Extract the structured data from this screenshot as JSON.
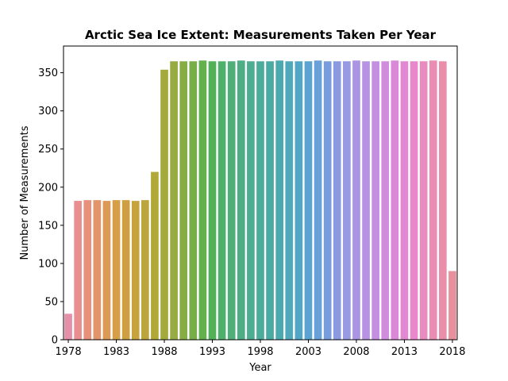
{
  "chart_data": {
    "type": "bar",
    "title": "Arctic Sea Ice Extent: Measurements Taken Per Year",
    "xlabel": "Year",
    "ylabel": "Number of Measurements",
    "ylim": [
      0,
      385
    ],
    "yticks": [
      0,
      50,
      100,
      150,
      200,
      250,
      300,
      350
    ],
    "xtick_labels": [
      "1978",
      "1983",
      "1988",
      "1993",
      "1998",
      "2003",
      "2008",
      "2013",
      "2018"
    ],
    "grid": false,
    "legend": "none",
    "categories": [
      "1978",
      "1979",
      "1980",
      "1981",
      "1982",
      "1983",
      "1984",
      "1985",
      "1986",
      "1987",
      "1988",
      "1989",
      "1990",
      "1991",
      "1992",
      "1993",
      "1994",
      "1995",
      "1996",
      "1997",
      "1998",
      "1999",
      "2000",
      "2001",
      "2002",
      "2003",
      "2004",
      "2005",
      "2006",
      "2007",
      "2008",
      "2009",
      "2010",
      "2011",
      "2012",
      "2013",
      "2014",
      "2015",
      "2016",
      "2017",
      "2018"
    ],
    "values": [
      34,
      182,
      183,
      183,
      182,
      183,
      183,
      182,
      183,
      220,
      354,
      365,
      365,
      365,
      366,
      365,
      365,
      365,
      366,
      365,
      365,
      365,
      366,
      365,
      365,
      365,
      366,
      365,
      365,
      365,
      366,
      365,
      365,
      365,
      366,
      365,
      365,
      365,
      366,
      365,
      90
    ],
    "colors": [
      "#e58fa8",
      "#ea8f8f",
      "#e7917d",
      "#e2956a",
      "#dc9a55",
      "#d69e47",
      "#cea041",
      "#c6a33c",
      "#bca53a",
      "#b1a838",
      "#a4a93c",
      "#96ab41",
      "#87ac45",
      "#77ae49",
      "#63b04d",
      "#52b058",
      "#4fb06b",
      "#4eaf79",
      "#4dae86",
      "#4cad91",
      "#4bac9b",
      "#4aaba5",
      "#4baab0",
      "#4ea9bb",
      "#52a7c6",
      "#5ba4d1",
      "#68a0d9",
      "#789ddd",
      "#899ae1",
      "#9998e3",
      "#a995e4",
      "#b893e3",
      "#c58fe1",
      "#d08ddd",
      "#da89d8",
      "#e287d2",
      "#e688c9",
      "#e88bbf",
      "#e98db5",
      "#e98fa9",
      "#e8919e"
    ]
  }
}
